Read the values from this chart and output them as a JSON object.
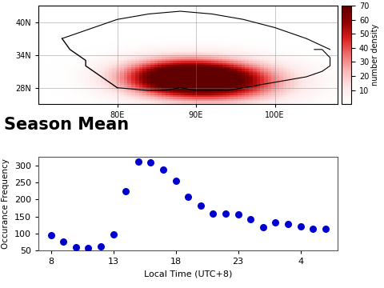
{
  "title": "Season Mean",
  "scatter_x": [
    8,
    9,
    10,
    11,
    12,
    13,
    14,
    15,
    16,
    17,
    18,
    19,
    20,
    21,
    22,
    23,
    0,
    1,
    2,
    3,
    4,
    5,
    6
  ],
  "scatter_y": [
    95,
    77,
    60,
    57,
    62,
    98,
    225,
    312,
    310,
    287,
    255,
    207,
    182,
    158,
    158,
    155,
    143,
    118,
    133,
    127,
    120,
    115,
    115
  ],
  "scatter_color": "#0000cc",
  "scatter_marker": "o",
  "scatter_size": 30,
  "xlabel": "Local Time (UTC+8)",
  "ylabel": "Occurance Frequency",
  "yticks": [
    50,
    100,
    150,
    200,
    250,
    300
  ],
  "ylim": [
    50,
    325
  ],
  "cbar_label": "number density",
  "cbar_ticks": [
    10,
    20,
    30,
    40,
    50,
    60,
    70
  ],
  "map_xlim": [
    70,
    108
  ],
  "map_ylim": [
    25,
    43
  ],
  "map_xticks_labels": [
    "80E",
    "90E",
    "100E"
  ],
  "map_xticks": [
    80,
    90,
    100
  ],
  "map_yticks": [
    28,
    34,
    40
  ],
  "map_yticks_labels": [
    "28N",
    "34N",
    "40N"
  ],
  "title_fontsize": 15,
  "title_fontweight": "bold",
  "density_peak_lon": 88,
  "density_peak_lat": 30,
  "density_peak2_lon": 93,
  "density_peak2_lat": 29
}
